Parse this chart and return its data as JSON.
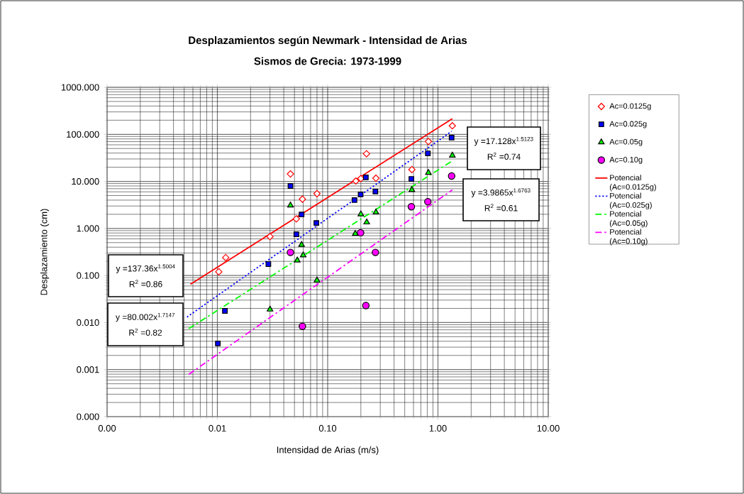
{
  "chart_data": {
    "type": "scatter",
    "title": "Desplazamientos según Newmark - Intensidad de Arias",
    "subtitle": "Sismos de Grecia: 1973-1999",
    "xlabel": "Intensidad de Arias (m/s)",
    "ylabel": "Desplazamiento (cm)",
    "log": "xy",
    "grid": true,
    "legend": "right",
    "xlim": [
      0.001,
      10
    ],
    "ylim": [
      0.0001,
      1000
    ],
    "xticks": [
      {
        "value": 0.001,
        "label": "0.00"
      },
      {
        "value": 0.01,
        "label": "0.01"
      },
      {
        "value": 0.1,
        "label": "0.10"
      },
      {
        "value": 1,
        "label": "1.00"
      },
      {
        "value": 10,
        "label": "10.00"
      }
    ],
    "yticks": [
      {
        "value": 0.0001,
        "label": "0.000"
      },
      {
        "value": 0.001,
        "label": "0.001"
      },
      {
        "value": 0.01,
        "label": "0.010"
      },
      {
        "value": 0.1,
        "label": "0.100"
      },
      {
        "value": 1,
        "label": "1.000"
      },
      {
        "value": 10,
        "label": "10.000"
      },
      {
        "value": 100,
        "label": "100.000"
      },
      {
        "value": 1000,
        "label": "1000.000"
      }
    ],
    "annotations": [
      "y =137.36x$^{1.5004}$",
      "R$^{2}$ =0.86",
      "y =80.002x$^{1.7147}$",
      "R$^{2}$ =0.82",
      "y =17.128x$^{1.5123}$",
      "R$^{2}$ =0.74",
      "y =3.9865x$^{1.6763}$",
      "R$^{2}$ =0.61"
    ],
    "series": [
      {
        "name": "Ac=0.0125g",
        "type": "scatter",
        "marker": "diamond",
        "color": "#ff0000",
        "x": [
          0.0103,
          0.0119,
          0.03,
          0.046,
          0.052,
          0.059,
          0.08,
          0.18,
          0.2,
          0.225,
          0.274,
          0.58,
          0.82,
          1.35
        ],
        "values": [
          0.12,
          0.24,
          0.67,
          14.4,
          1.6,
          4.2,
          5.5,
          10.2,
          11.5,
          38.6,
          11.7,
          17.8,
          70.6,
          152
        ]
      },
      {
        "name": "Ac=0.025g",
        "type": "scatter",
        "marker": "square",
        "color": "#0000ff",
        "x": [
          0.0101,
          0.0117,
          0.029,
          0.046,
          0.052,
          0.058,
          0.079,
          0.175,
          0.199,
          0.222,
          0.271,
          0.574,
          0.81,
          1.33
        ],
        "values": [
          0.0036,
          0.0177,
          0.175,
          8.0,
          0.75,
          1.98,
          1.31,
          4.0,
          5.3,
          12.2,
          6.1,
          11.3,
          39.5,
          85
        ]
      },
      {
        "name": "Ac=0.05g",
        "type": "scatter",
        "marker": "triangle",
        "color": "#00ff00",
        "x": [
          0.03,
          0.046,
          0.053,
          0.058,
          0.06,
          0.08,
          0.178,
          0.2,
          0.226,
          0.274,
          0.58,
          0.82,
          1.35
        ],
        "values": [
          0.019,
          3.1,
          0.21,
          0.45,
          0.27,
          0.079,
          0.77,
          2.0,
          1.35,
          2.2,
          6.6,
          15.3,
          35.6
        ]
      },
      {
        "name": "Ac=0.10g",
        "type": "scatter",
        "marker": "circle",
        "color": "#ff00ff",
        "x": [
          0.046,
          0.059,
          0.199,
          0.222,
          0.271,
          0.574,
          0.81,
          1.33
        ],
        "values": [
          0.31,
          0.0083,
          0.81,
          0.023,
          0.31,
          2.9,
          3.7,
          13.0
        ]
      },
      {
        "name": "Potencial (Ac=0.0125g)",
        "type": "line",
        "marker": "none",
        "line_style": "solid",
        "color": "#ff0000",
        "x": [
          0.0057,
          1.35
        ],
        "values": [
          0.065,
          215
        ]
      },
      {
        "name": "Potencial (Ac=0.025g)",
        "type": "line",
        "marker": "none",
        "line_style": "dotted",
        "color": "#0000ff",
        "x": [
          0.0053,
          1.33
        ],
        "values": [
          0.0131,
          116
        ]
      },
      {
        "name": "Potencial (Ac=0.05g)",
        "type": "line",
        "marker": "none",
        "line_style": "dashed",
        "color": "#00ff00",
        "x": [
          0.0055,
          1.35
        ],
        "values": [
          0.0074,
          27.3
        ]
      },
      {
        "name": "Potencial (Ac=0.10g)",
        "type": "line",
        "marker": "none",
        "line_style": "dashed",
        "color": "#ff00ff",
        "x": [
          0.0055,
          1.35
        ],
        "values": [
          0.00079,
          6.6
        ]
      }
    ]
  }
}
